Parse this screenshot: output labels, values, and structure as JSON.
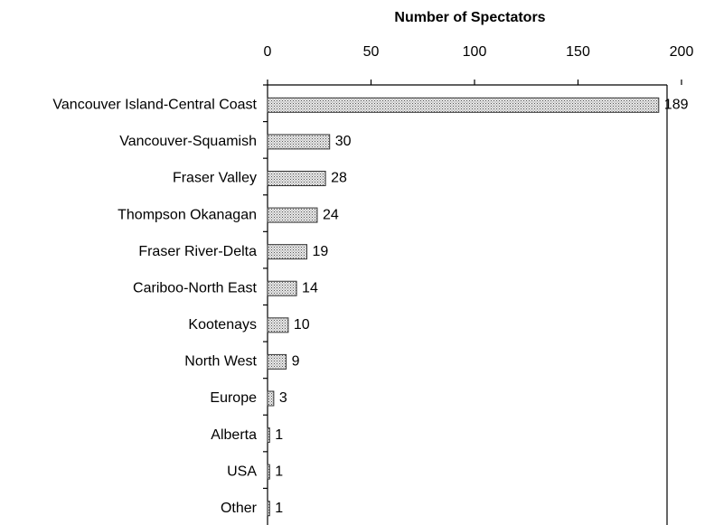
{
  "chart_data": {
    "type": "bar",
    "orientation": "horizontal",
    "title": "Number of Spectators",
    "categories": [
      "Vancouver Island-Central Coast",
      "Vancouver-Squamish",
      "Fraser Valley",
      "Thompson Okanagan",
      "Fraser River-Delta",
      "Cariboo-North East",
      "Kootenays",
      "North West",
      "Europe",
      "Alberta",
      "USA",
      "Other"
    ],
    "values": [
      189,
      30,
      28,
      24,
      19,
      14,
      10,
      9,
      3,
      1,
      1,
      1
    ],
    "color": "#9a9a9a",
    "xlim": [
      0,
      200
    ],
    "xticks": [
      0,
      50,
      100,
      150,
      200
    ],
    "grid": false
  }
}
